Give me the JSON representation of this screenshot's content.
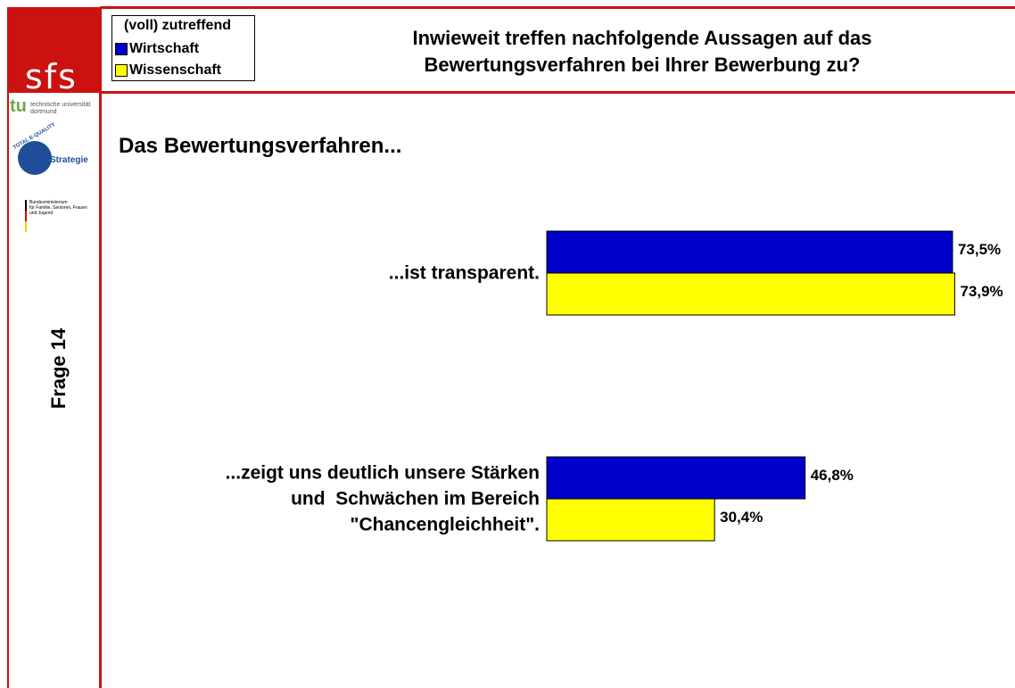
{
  "chart_data": {
    "type": "hbar",
    "title": "Inwieweit treffen nachfolgende Aussagen auf das\nBewertungsverfahren bei Ihrer Bewerbung zu?",
    "subtitle": "Das Bewertungsverfahren...",
    "legend_title": "(voll) zutreffend",
    "categories": [
      "...ist transparent.",
      "...zeigt uns deutlich unsere Stärken\nund  Schwächen im Bereich\n\"Chancengleichheit\"."
    ],
    "series": [
      {
        "name": "Wirtschaft",
        "color": "#0000cc",
        "values": [
          73.5,
          46.8
        ],
        "value_labels": [
          "73,5%",
          "46,8%"
        ]
      },
      {
        "name": "Wissenschaft",
        "color": "#ffff00",
        "values": [
          73.9,
          30.4
        ],
        "value_labels": [
          "73,9%",
          "30,4%"
        ]
      }
    ]
  },
  "sidebar": {
    "logo": "sfs",
    "university": "technische universität\ndortmund",
    "tu": "tu",
    "quality": "TOTAL E-QUALITY",
    "strategy": "Strategie",
    "ministry": "Bundesministerium\nfür Familie, Senioren, Frauen\nund Jugend",
    "question": "Frage 14"
  }
}
